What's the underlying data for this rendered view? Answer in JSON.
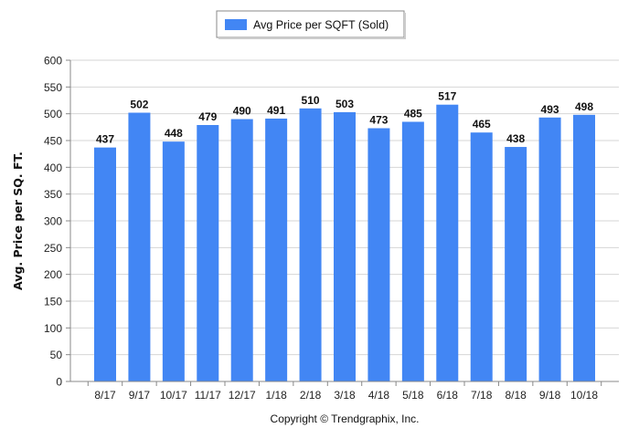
{
  "chart_data": {
    "type": "bar",
    "categories": [
      "8/17",
      "9/17",
      "10/17",
      "11/17",
      "12/17",
      "1/18",
      "2/18",
      "3/18",
      "4/18",
      "5/18",
      "6/18",
      "7/18",
      "8/18",
      "9/18",
      "10/18"
    ],
    "series": [
      {
        "name": "Avg Price per SQFT (Sold)",
        "values": [
          437,
          502,
          448,
          479,
          490,
          491,
          510,
          503,
          473,
          485,
          517,
          465,
          438,
          493,
          498
        ],
        "color": "#4286f4"
      }
    ],
    "ylabel": "Avg. Price per SQ. FT.",
    "xlabel": "",
    "ylim": [
      0,
      600
    ],
    "ytick_step": 50,
    "grid": true,
    "legend": "top-center",
    "data_labels": true
  },
  "footer": {
    "copyright": "Copyright © Trendgraphix, Inc."
  }
}
